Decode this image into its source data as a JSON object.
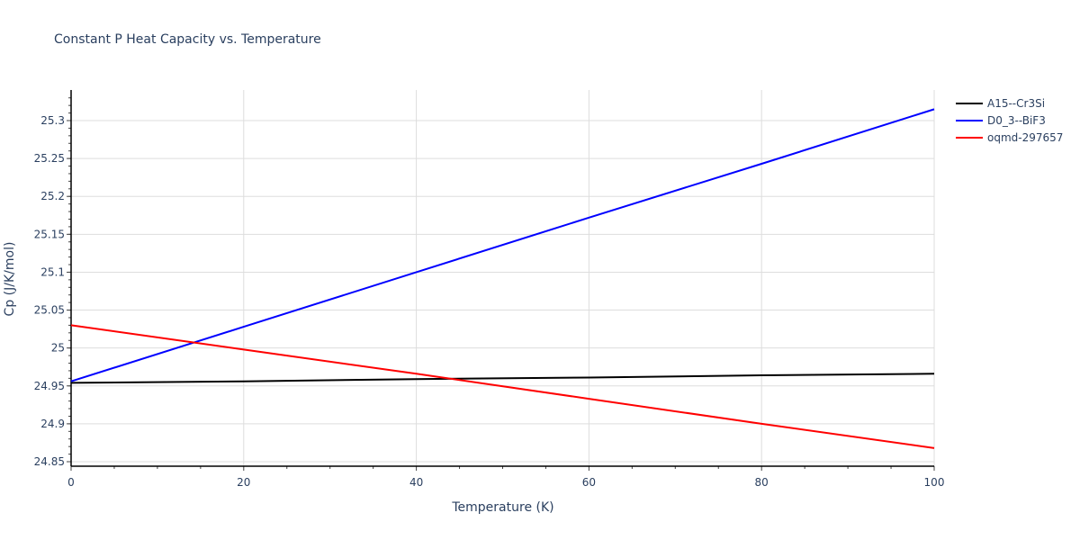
{
  "chart_data": {
    "type": "line",
    "title": "Constant P Heat Capacity vs. Temperature",
    "xlabel": "Temperature (K)",
    "ylabel": "Cp (J/K/mol)",
    "xlim": [
      0,
      100
    ],
    "ylim": [
      24.84,
      25.34
    ],
    "grid": true,
    "legend_position": "right-top",
    "x_ticks": [
      0,
      20,
      40,
      60,
      80,
      100
    ],
    "y_ticks": [
      24.85,
      24.9,
      24.95,
      25,
      25.05,
      25.1,
      25.15,
      25.2,
      25.25,
      25.3
    ],
    "x": [
      0,
      20,
      40,
      60,
      80,
      100
    ],
    "series": [
      {
        "name": "A15--Cr3Si",
        "color": "#000000",
        "values": [
          24.954,
          24.956,
          24.959,
          24.961,
          24.964,
          24.966
        ]
      },
      {
        "name": "D0_3--BiF3",
        "color": "#0000ff",
        "values": [
          24.956,
          25.028,
          25.1,
          25.172,
          25.243,
          25.315
        ]
      },
      {
        "name": "oqmd-297657",
        "color": "#ff0000",
        "values": [
          25.03,
          24.998,
          24.966,
          24.933,
          24.9,
          24.868
        ]
      }
    ]
  }
}
